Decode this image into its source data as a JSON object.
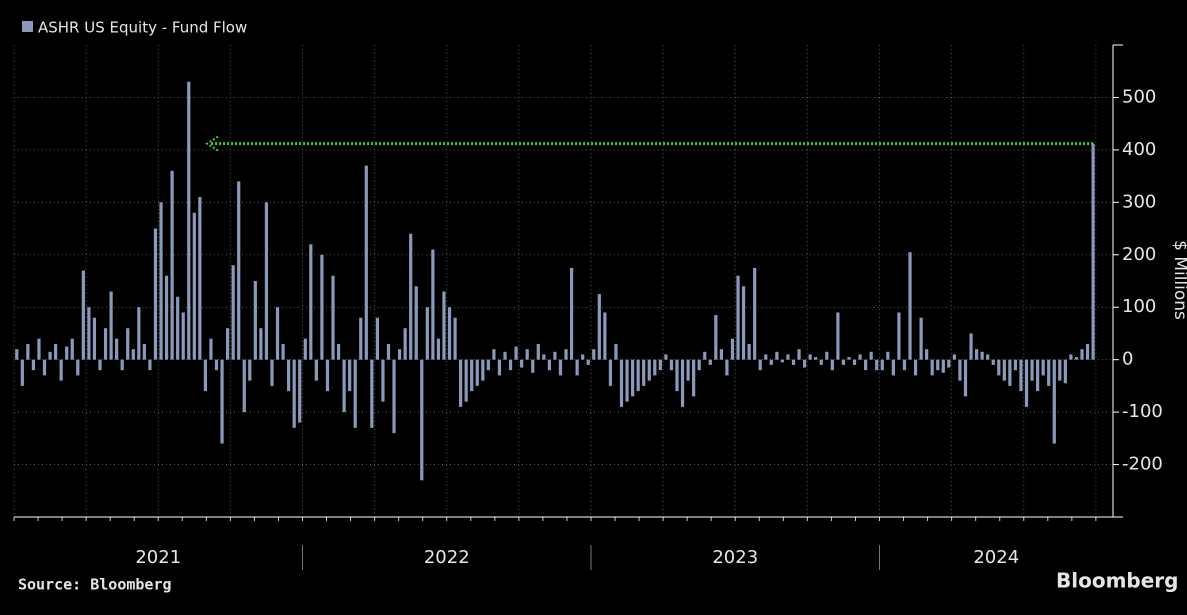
{
  "chart_data": {
    "type": "bar",
    "title": "ASHR US Equity - Fund Flow",
    "source": "Source: Bloomberg",
    "brand": "Bloomberg",
    "y_label": "$ Millions",
    "color": "#8a9aba",
    "highlight_level": 412,
    "highlight_color": "#3ad13a",
    "ylim": [
      -300,
      600
    ],
    "yticks": [
      -200,
      -100,
      0,
      100,
      200,
      300,
      400,
      500
    ],
    "grid": true,
    "periods": [
      {
        "label": "2021",
        "values": [
          20,
          -50,
          30,
          -20,
          40,
          -30,
          15,
          30,
          -40,
          25,
          40,
          -30,
          170,
          100,
          80,
          -20,
          60,
          130,
          40,
          -20,
          60,
          20,
          100,
          30,
          -20,
          250,
          300,
          160,
          360,
          120,
          90,
          530,
          280,
          310,
          -60,
          40,
          -20,
          -160,
          60,
          180,
          340,
          -100,
          -40,
          150,
          60,
          300,
          -50,
          100,
          30,
          -60,
          -130,
          -120
        ]
      },
      {
        "label": "2022",
        "values": [
          40,
          220,
          -40,
          200,
          -60,
          160,
          30,
          -100,
          -60,
          -130,
          80,
          370,
          -130,
          80,
          -80,
          30,
          -140,
          20,
          60,
          240,
          140,
          -230,
          100,
          210,
          40,
          130,
          100,
          80,
          -90,
          -80,
          -60,
          -50,
          -40,
          -20,
          20,
          -30,
          15,
          -20,
          25,
          -15,
          20,
          -25,
          30,
          10,
          -20,
          15,
          -30,
          20,
          175,
          -30,
          10,
          -10
        ]
      },
      {
        "label": "2023",
        "values": [
          20,
          125,
          90,
          -50,
          30,
          -90,
          -80,
          -70,
          -60,
          -50,
          -40,
          -30,
          -20,
          10,
          -20,
          -60,
          -90,
          -40,
          -70,
          -20,
          15,
          -10,
          85,
          20,
          -30,
          40,
          160,
          140,
          30,
          175,
          -20,
          10,
          -10,
          15,
          -5,
          10,
          -10,
          20,
          -15,
          10,
          5,
          -10,
          15,
          -20,
          90,
          -10,
          5,
          -10,
          10,
          -20,
          15,
          -20
        ]
      },
      {
        "label": "2024",
        "values": [
          -20,
          15,
          -30,
          90,
          -20,
          205,
          -30,
          80,
          20,
          -30,
          -20,
          -25,
          -15,
          10,
          -40,
          -70,
          50,
          20,
          15,
          10,
          -10,
          -30,
          -40,
          -50,
          -20,
          -60,
          -90,
          -40,
          -60,
          -30,
          -50,
          -160,
          -40,
          -45,
          10,
          5,
          20,
          30,
          412
        ]
      }
    ]
  }
}
